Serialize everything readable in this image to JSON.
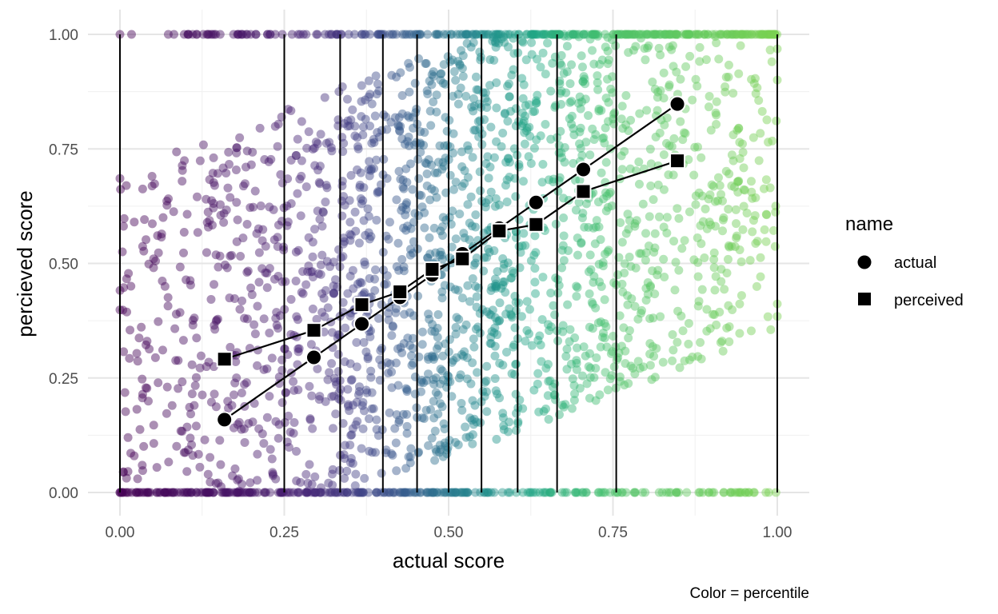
{
  "chart_data": {
    "type": "scatter",
    "title": "",
    "xlabel": "actual score",
    "ylabel": "percieved score",
    "caption": "Color = percentile",
    "xlim": [
      -0.04,
      1.04
    ],
    "ylim": [
      -0.04,
      1.04
    ],
    "x_ticks": [
      "0.00",
      "0.25",
      "0.50",
      "0.75",
      "1.00"
    ],
    "y_ticks": [
      "0.00",
      "0.25",
      "0.50",
      "0.75",
      "1.00"
    ],
    "x_tick_values": [
      0,
      0.25,
      0.5,
      0.75,
      1
    ],
    "y_tick_values": [
      0,
      0.25,
      0.5,
      0.75,
      1
    ],
    "grid": true,
    "legend": {
      "title": "name",
      "position": "right",
      "entries": [
        {
          "label": "actual",
          "shape": "circle"
        },
        {
          "label": "perceived",
          "shape": "square"
        }
      ]
    },
    "decile_boundaries": [
      0,
      0.25,
      0.335,
      0.4,
      0.452,
      0.5,
      0.55,
      0.605,
      0.665,
      0.755,
      1.0
    ],
    "color_scale": [
      "#440154",
      "#482475",
      "#414487",
      "#355f8d",
      "#2a788e",
      "#21918c",
      "#22a884",
      "#44bf70",
      "#7ad151"
    ],
    "series": [
      {
        "name": "actual",
        "x": [
          0.159,
          0.295,
          0.368,
          0.426,
          0.475,
          0.521,
          0.577,
          0.633,
          0.705,
          0.848
        ],
        "y": [
          0.159,
          0.295,
          0.368,
          0.426,
          0.475,
          0.521,
          0.577,
          0.633,
          0.705,
          0.848
        ]
      },
      {
        "name": "perceived",
        "x": [
          0.159,
          0.295,
          0.368,
          0.426,
          0.475,
          0.521,
          0.577,
          0.633,
          0.705,
          0.848
        ],
        "y": [
          0.291,
          0.354,
          0.41,
          0.438,
          0.487,
          0.51,
          0.571,
          0.585,
          0.657,
          0.724
        ]
      }
    ],
    "raw_points_note_hidden": ""
  }
}
